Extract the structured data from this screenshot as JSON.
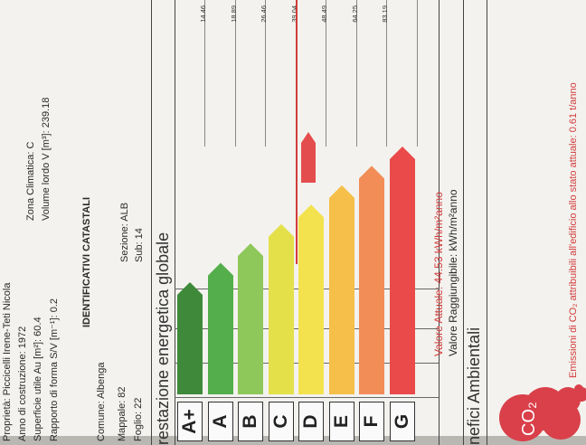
{
  "property_info": {
    "owner": "Proprietà: Piccicelli Irene-Teti Nicola",
    "year": "Anno di costruzione: 1972",
    "area": "Superficie utile Au [m²]: 60.4",
    "ratio": "Rapporto di forma S/V [m⁻¹]: 0.2",
    "climate_zone": "Zona Climatica: C",
    "volume": "Volume lordo V [m³]: 239.18"
  },
  "cadastral": {
    "heading": "IDENTIFICATIVI CATASTALI",
    "comune": "Comune: Albenga",
    "sezione": "Sezione: ALB",
    "mappale": "Mappale: 82",
    "sub": "Sub: 14",
    "foglio": "Foglio: 22"
  },
  "energy_section_title": "restazione energetica globale",
  "chart_data": {
    "type": "bar",
    "categories": [
      "A+",
      "A",
      "B",
      "C",
      "D",
      "E",
      "F",
      "G"
    ],
    "thresholds": [
      "14.46",
      "18.89",
      "26.46",
      "39.04",
      "48.49",
      "64.25",
      "83.19"
    ],
    "colors": [
      "#3e8a3a",
      "#53ae4b",
      "#8ec85a",
      "#e3e04a",
      "#f3e24e",
      "#f5bf49",
      "#f28d58",
      "#ea4a4a"
    ],
    "marker_value": 44.53,
    "marker_class": "D"
  },
  "values": {
    "current": "Valore Attuale: 44.53 kWh/m²anno",
    "achievable": "Valore Raggiungibile: kWh/m²anno"
  },
  "benefits_title": "nefici Ambientali",
  "co2": {
    "label": "CO₂",
    "emissions": "Emissioni di CO₂ attribuibili all'edificio allo stato attuale: 0.61 t/anno"
  },
  "theme": {
    "marker_color": "#e44d4d",
    "red_text": "#d23b3b"
  }
}
